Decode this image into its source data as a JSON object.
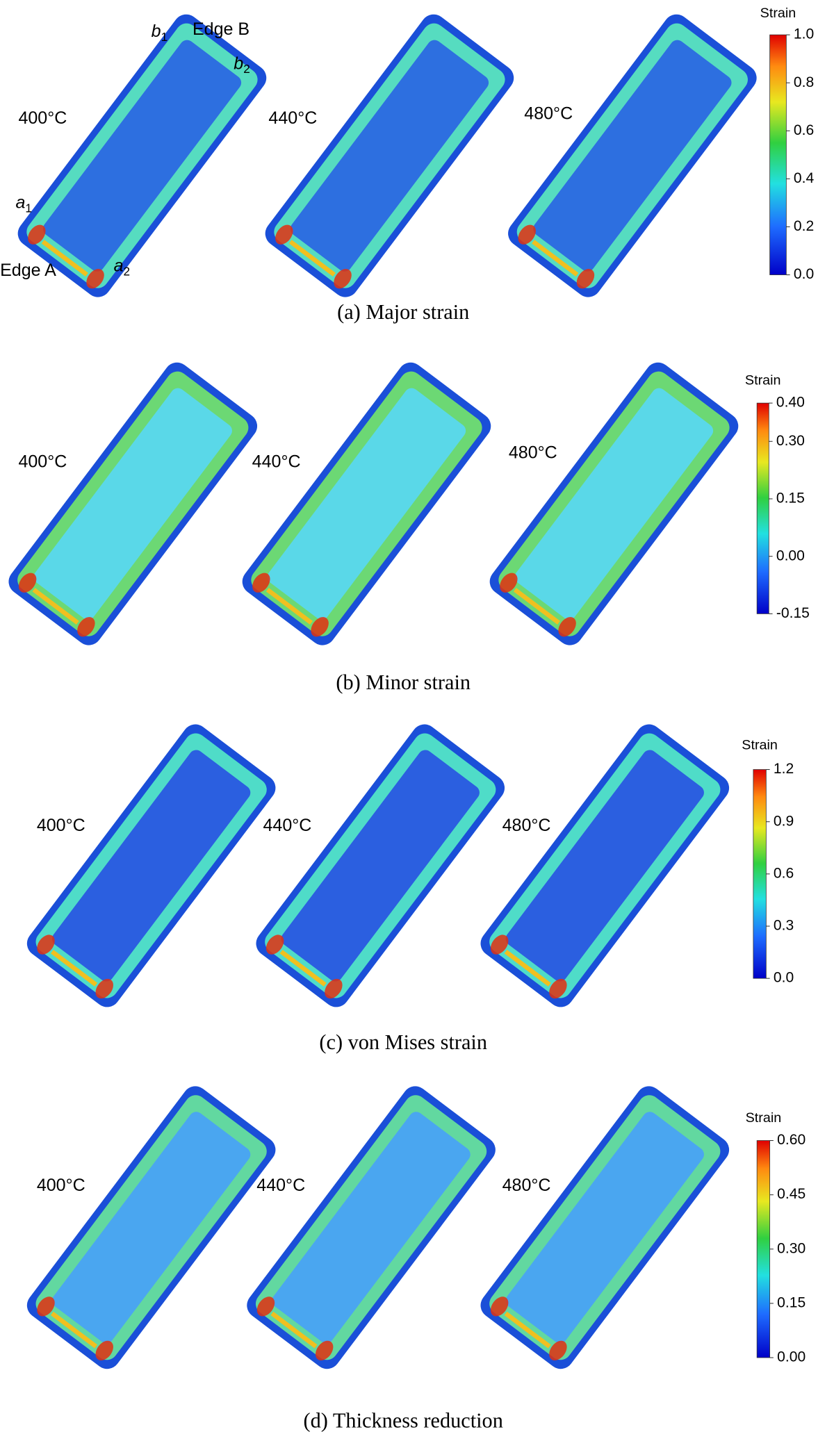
{
  "panels": [
    {
      "caption": "(a) Major strain",
      "temperatures": [
        "400°C",
        "440°C",
        "480°C"
      ],
      "colorbar": {
        "title": "Strain",
        "lim": [
          0,
          1
        ],
        "ticks": [
          {
            "value": 1,
            "label": "1.0"
          },
          0.8,
          0.6,
          0.4,
          0.2,
          {
            "value": 0,
            "label": "0.0"
          }
        ]
      },
      "annotations": [
        {
          "letter": "b",
          "subscript": "1"
        },
        {
          "text": "Edge B"
        },
        {
          "letter": "b",
          "subscript": "2"
        },
        {
          "letter": "a",
          "subscript": "1"
        },
        {
          "text": "Edge A"
        },
        {
          "letter": "a",
          "subscript": "2"
        }
      ]
    },
    {
      "caption": "(b) Minor strain",
      "temperatures": [
        "400°C",
        "440°C",
        "480°C"
      ],
      "colorbar": {
        "title": "Strain",
        "lim": [
          -0.15,
          0.4
        ],
        "ticks": [
          {
            "value": 0.4,
            "label": "0.40"
          },
          {
            "value": 0.3,
            "label": "0.30"
          },
          0.15,
          {
            "value": 0,
            "label": "0.00"
          },
          -0.15
        ]
      }
    },
    {
      "caption": "(c) von Mises strain",
      "temperatures": [
        "400°C",
        "440°C",
        "480°C"
      ],
      "colorbar": {
        "title": "Strain",
        "lim": [
          0,
          1.2
        ],
        "ticks": [
          1.2,
          0.9,
          0.6,
          0.3,
          {
            "value": 0,
            "label": "0.0"
          }
        ]
      }
    },
    {
      "caption": "(d) Thickness reduction",
      "temperatures": [
        "400°C",
        "440°C",
        "480°C"
      ],
      "colorbar": {
        "title": "Strain",
        "lim": [
          0,
          0.6
        ],
        "ticks": [
          {
            "value": 0.6,
            "label": "0.60"
          },
          0.45,
          {
            "value": 0.3,
            "label": "0.30"
          },
          0.15,
          {
            "value": 0,
            "label": "0.00"
          }
        ]
      }
    }
  ]
}
